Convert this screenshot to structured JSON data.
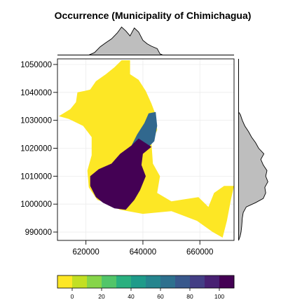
{
  "chart_data": {
    "type": "heatmap",
    "title": "Occurrence (Municipality of Chimichagua)",
    "xlabel": "",
    "ylabel": "",
    "xlim": [
      610000,
      672000
    ],
    "ylim": [
      987000,
      1052000
    ],
    "x_ticks": [
      620000,
      640000,
      660000
    ],
    "x_tick_labels": [
      "620000",
      "640000",
      "660000"
    ],
    "y_ticks": [
      990000,
      1000000,
      1010000,
      1020000,
      1030000,
      1040000,
      1050000
    ],
    "y_tick_labels": [
      "990000",
      "1000000",
      "1010000",
      "1020000",
      "1030000",
      "1040000",
      "1050000"
    ],
    "grid": true,
    "colorbar": {
      "position": "bottom",
      "range": [
        -10,
        110
      ],
      "ticks": [
        0,
        20,
        40,
        60,
        80,
        100
      ],
      "tick_labels": [
        "0",
        "20",
        "40",
        "60",
        "80",
        "100"
      ],
      "colors": [
        "#FDE725",
        "#C2DF23",
        "#86D549",
        "#52C569",
        "#2AB07F",
        "#1E9B8A",
        "#25858E",
        "#2D708E",
        "#38588C",
        "#433E85",
        "#482173",
        "#440154"
      ]
    },
    "region_values": {
      "low_occurrence_area": 0,
      "high_occurrence_area": 105
    },
    "marginal_x_density": [
      {
        "x": 610000,
        "d": 0
      },
      {
        "x": 621000,
        "d": 0
      },
      {
        "x": 623000,
        "d": 0.08
      },
      {
        "x": 625000,
        "d": 0.28
      },
      {
        "x": 627000,
        "d": 0.42
      },
      {
        "x": 629000,
        "d": 0.55
      },
      {
        "x": 631000,
        "d": 0.75
      },
      {
        "x": 632500,
        "d": 0.95
      },
      {
        "x": 634000,
        "d": 0.82
      },
      {
        "x": 635500,
        "d": 0.65
      },
      {
        "x": 637000,
        "d": 0.92
      },
      {
        "x": 638500,
        "d": 0.78
      },
      {
        "x": 640000,
        "d": 0.5
      },
      {
        "x": 641500,
        "d": 0.38
      },
      {
        "x": 643000,
        "d": 0.3
      },
      {
        "x": 645000,
        "d": 0.22
      },
      {
        "x": 646000,
        "d": 0.04
      },
      {
        "x": 647000,
        "d": 0
      },
      {
        "x": 672000,
        "d": 0
      }
    ],
    "marginal_y_density": [
      {
        "y": 987000,
        "d": 0
      },
      {
        "y": 988500,
        "d": 0.05
      },
      {
        "y": 990000,
        "d": 0.08
      },
      {
        "y": 992000,
        "d": 0.1
      },
      {
        "y": 995000,
        "d": 0.12
      },
      {
        "y": 997000,
        "d": 0.15
      },
      {
        "y": 999000,
        "d": 0.25
      },
      {
        "y": 1000500,
        "d": 0.55
      },
      {
        "y": 1002000,
        "d": 0.8
      },
      {
        "y": 1004000,
        "d": 0.88
      },
      {
        "y": 1006000,
        "d": 0.85
      },
      {
        "y": 1008000,
        "d": 0.95
      },
      {
        "y": 1010000,
        "d": 0.88
      },
      {
        "y": 1012000,
        "d": 0.92
      },
      {
        "y": 1014000,
        "d": 0.8
      },
      {
        "y": 1016000,
        "d": 0.72
      },
      {
        "y": 1018000,
        "d": 0.82
      },
      {
        "y": 1020000,
        "d": 0.65
      },
      {
        "y": 1022000,
        "d": 0.55
      },
      {
        "y": 1024000,
        "d": 0.42
      },
      {
        "y": 1026000,
        "d": 0.32
      },
      {
        "y": 1028000,
        "d": 0.2
      },
      {
        "y": 1030000,
        "d": 0.12
      },
      {
        "y": 1032000,
        "d": 0.06
      },
      {
        "y": 1033000,
        "d": 0
      },
      {
        "y": 1052000,
        "d": 0
      }
    ],
    "outline": [
      [
        610500,
        1031500
      ],
      [
        614500,
        1034000
      ],
      [
        616500,
        1036500
      ],
      [
        617000,
        1040000
      ],
      [
        619500,
        1040500
      ],
      [
        621500,
        1041000
      ],
      [
        623500,
        1044000
      ],
      [
        627000,
        1046500
      ],
      [
        630000,
        1049000
      ],
      [
        632500,
        1051500
      ],
      [
        635500,
        1051500
      ],
      [
        635500,
        1046500
      ],
      [
        638500,
        1044500
      ],
      [
        641000,
        1040500
      ],
      [
        643000,
        1036000
      ],
      [
        644500,
        1032000
      ],
      [
        645000,
        1026500
      ],
      [
        643000,
        1022000
      ],
      [
        643500,
        1014500
      ],
      [
        646000,
        1010000
      ],
      [
        645000,
        1004000
      ],
      [
        650000,
        1001000
      ],
      [
        659500,
        1002500
      ],
      [
        663000,
        999000
      ],
      [
        665000,
        1004000
      ],
      [
        668500,
        1006500
      ],
      [
        672000,
        1006500
      ],
      [
        671000,
        1002000
      ],
      [
        669500,
        994000
      ],
      [
        668000,
        988000
      ],
      [
        664500,
        990000
      ],
      [
        659000,
        994000
      ],
      [
        650000,
        997500
      ],
      [
        640000,
        996500
      ],
      [
        632000,
        998000
      ],
      [
        627000,
        1000500
      ],
      [
        624000,
        1001500
      ],
      [
        621000,
        1006000
      ],
      [
        620500,
        1012000
      ],
      [
        622000,
        1017500
      ],
      [
        622000,
        1024000
      ],
      [
        619000,
        1028000
      ],
      [
        614000,
        1030500
      ]
    ],
    "high_region": [
      [
        624500,
        1012500
      ],
      [
        629000,
        1014500
      ],
      [
        632000,
        1018000
      ],
      [
        636000,
        1021000
      ],
      [
        638500,
        1023500
      ],
      [
        643000,
        1020500
      ],
      [
        640000,
        1018000
      ],
      [
        639500,
        1014000
      ],
      [
        641000,
        1010000
      ],
      [
        639000,
        1005000
      ],
      [
        637000,
        1001500
      ],
      [
        634000,
        998000
      ],
      [
        630000,
        998500
      ],
      [
        626000,
        1000500
      ],
      [
        623500,
        1002500
      ],
      [
        621500,
        1006500
      ],
      [
        621500,
        1010000
      ]
    ],
    "mid_region": [
      [
        636000,
        1021000
      ],
      [
        638000,
        1025000
      ],
      [
        640500,
        1029000
      ],
      [
        642000,
        1032500
      ],
      [
        644500,
        1033000
      ],
      [
        645000,
        1028000
      ],
      [
        644000,
        1022500
      ],
      [
        642000,
        1020500
      ],
      [
        639000,
        1022000
      ]
    ]
  }
}
